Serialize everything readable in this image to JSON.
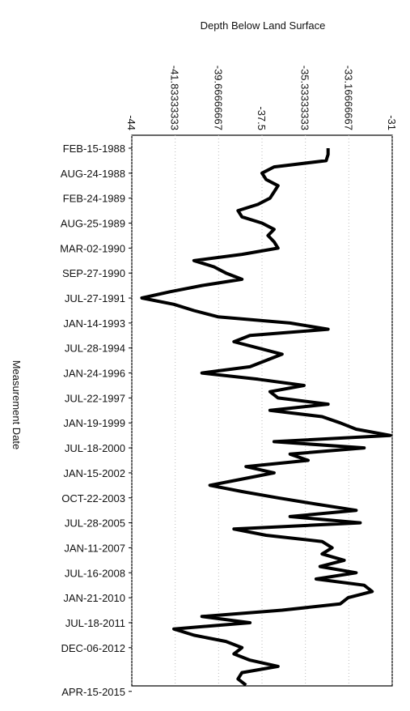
{
  "chart_data": {
    "type": "line",
    "x_axis_label": "Depth Below Land Surface",
    "y_axis_label": "Measurement Date",
    "xlim": [
      -44,
      -31
    ],
    "xticks": [
      -44,
      -41.83333333,
      -39.66666667,
      -37.5,
      -35.33333333,
      -33.16666667,
      -31
    ],
    "grid": true,
    "categories": [
      "FEB-15-1988",
      null,
      null,
      null,
      "AUG-24-1988",
      null,
      null,
      null,
      "FEB-24-1989",
      null,
      null,
      null,
      "AUG-25-1989",
      null,
      null,
      null,
      "MAR-02-1990",
      null,
      null,
      null,
      "SEP-27-1990",
      null,
      null,
      null,
      "JUL-27-1991",
      null,
      null,
      null,
      "JAN-14-1993",
      null,
      null,
      null,
      "JUL-28-1994",
      null,
      null,
      null,
      "JAN-24-1996",
      null,
      null,
      null,
      "JUL-22-1997",
      null,
      null,
      null,
      "JAN-19-1999",
      null,
      null,
      null,
      "JUL-18-2000",
      null,
      null,
      null,
      "JAN-15-2002",
      null,
      null,
      null,
      "OCT-22-2003",
      null,
      null,
      null,
      "JUL-28-2005",
      null,
      null,
      null,
      "JAN-11-2007",
      null,
      null,
      null,
      "JUL-16-2008",
      null,
      null,
      null,
      "JAN-21-2010",
      null,
      null,
      null,
      "JUL-18-2011",
      null,
      null,
      null,
      "DEC-06-2012",
      null,
      null,
      null,
      null,
      null,
      null,
      "APR-15-2015"
    ],
    "series": [
      {
        "color": "#000000",
        "values": [
          -34.2,
          -34.2,
          -34.3,
          -36.9,
          -37.5,
          -37.3,
          -36.7,
          -36.9,
          -37.1,
          -37.7,
          -38.7,
          -38.5,
          -37.5,
          -36.9,
          -37.2,
          -36.9,
          -36.7,
          -38.5,
          -40.9,
          -39.9,
          -39.3,
          -38.5,
          -40.5,
          -42.1,
          -43.5,
          -41.9,
          -40.9,
          -39.7,
          -36.1,
          -34.2,
          -38.1,
          -38.9,
          -37.7,
          -36.5,
          -37.3,
          -38.1,
          -40.5,
          -37.7,
          -35.4,
          -37.1,
          -36.7,
          -34.2,
          -37.1,
          -34.5,
          -33.6,
          -32.8,
          -31.1,
          -36.9,
          -32.4,
          -36.1,
          -35.2,
          -38.3,
          -36.9,
          -38.5,
          -40.1,
          -38.5,
          -36.7,
          -34.8,
          -32.8,
          -36.1,
          -32.6,
          -38.9,
          -37.3,
          -34.5,
          -34.0,
          -34.5,
          -33.4,
          -34.6,
          -32.8,
          -34.8,
          -32.4,
          -32.0,
          -33.2,
          -33.6,
          -36.5,
          -40.5,
          -38.1,
          -41.9,
          -40.9,
          -39.3,
          -38.5,
          -38.9,
          -38.1,
          -36.7,
          -38.5,
          -38.7,
          -38.3,
          null
        ]
      }
    ]
  }
}
